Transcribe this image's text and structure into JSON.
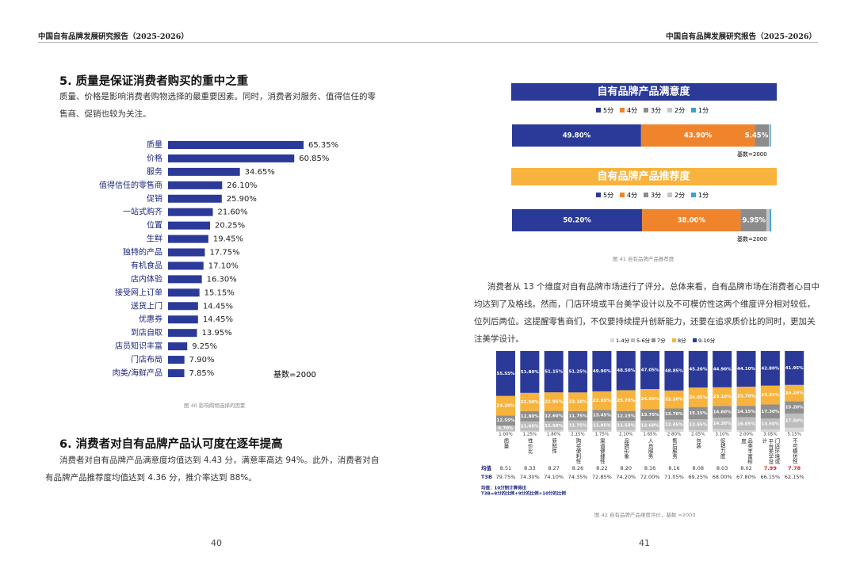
{
  "header": "中国自有品牌发展研究报告（2025-2026）",
  "left": {
    "heading": "5. 质量是保证消费者购买的重中之重",
    "intro": "质量、价格是影响消费者购物选择的最重要因素。同时，消费者对服务、值得信任的零售商、促销也较为关注。",
    "factors_chart": {
      "type": "hbar",
      "color": "#2b3a98",
      "categories": [
        "质量",
        "价格",
        "服务",
        "值得信任的零售商",
        "促销",
        "一站式购齐",
        "位置",
        "生鲜",
        "独特的产品",
        "有机食品",
        "店内体验",
        "接受网上订单",
        "送货上门",
        "优惠券",
        "到店自取",
        "店员知识丰富",
        "门店布局",
        "肉类/海鲜产品"
      ],
      "values": [
        65.35,
        60.85,
        34.65,
        26.1,
        25.9,
        21.6,
        20.25,
        19.45,
        17.75,
        17.1,
        16.3,
        15.15,
        14.45,
        14.45,
        13.95,
        9.25,
        7.9,
        7.85
      ],
      "value_labels": [
        "65.35%",
        "60.85%",
        "34.65%",
        "26.10%",
        "25.90%",
        "21.60%",
        "20.25%",
        "19.45%",
        "17.75%",
        "17.10%",
        "16.30%",
        "15.15%",
        "14.45%",
        "14.45%",
        "13.95%",
        "9.25%",
        "7.90%",
        "7.85%"
      ],
      "base_note": "基数=2000"
    },
    "caption": "图 40 影响购物选择的因素",
    "heading2": "6. 消费者对自有品牌产品认可度在逐年提高",
    "para2": "消费者对自有品牌产品满意度均值达到 4.43 分，满意率高达 94%。此外，消费者对自有品牌产品推荐度均值达到 4.36 分，推介率达到 88%。",
    "page_number": "40"
  },
  "right": {
    "satisfaction_chart": {
      "type": "stacked_hbar",
      "title": "自有品牌产品满意度",
      "title_color": "#2b3a98",
      "series": [
        {
          "name": "5分",
          "color": "#2b3a98",
          "values": [
            49.8
          ],
          "value_labels": [
            "49.80%"
          ]
        },
        {
          "name": "4分",
          "color": "#f0842c",
          "values": [
            43.9
          ],
          "value_labels": [
            "43.90%"
          ]
        },
        {
          "name": "3分",
          "color": "#8c8c8c",
          "values": [
            5.45
          ],
          "value_labels": [
            "5.45%"
          ]
        },
        {
          "name": "2分",
          "color": "#c4c4c4",
          "values": [
            0.6
          ]
        },
        {
          "name": "1分",
          "color": "#3aa0d8",
          "values": [
            0.25
          ]
        }
      ],
      "base_note": "基数=2000"
    },
    "recommend_chart": {
      "type": "stacked_hbar",
      "title": "自有品牌产品推荐度",
      "title_color": "#f7b33d",
      "series": [
        {
          "name": "5分",
          "color": "#2b3a98",
          "values": [
            50.2
          ],
          "value_labels": [
            "50.20%"
          ]
        },
        {
          "name": "4分",
          "color": "#f0842c",
          "values": [
            38.0
          ],
          "value_labels": [
            "38.00%"
          ]
        },
        {
          "name": "3分",
          "color": "#8c8c8c",
          "values": [
            9.95
          ],
          "value_labels": [
            "9.95%"
          ]
        },
        {
          "name": "2分",
          "color": "#c4c4c4",
          "values": [
            1.3
          ]
        },
        {
          "name": "1分",
          "color": "#3aa0d8",
          "values": [
            0.55
          ]
        }
      ],
      "base_note": "基数=2000"
    },
    "caption": "图 41 自有品牌产品推荐度",
    "para": "消费者从 13 个维度对自有品牌市场进行了评分。总体来看，自有品牌市场在消费者心目中均达到了及格线。然而，门店环境或平台美学设计以及不可模仿性这两个维度评分相对较低，位列后两位。这提醒零售商们，不仅要持续提升创新能力，还要在追求质价比的同时，更加关注美学设计。",
    "dimension_chart": {
      "type": "stacked_column",
      "categories": [
        "质量",
        "性价比",
        "新鲜性",
        "购买便利性",
        "渠道便捷性",
        "品牌形象",
        "人员服务",
        "售后服务",
        "包装",
        "促销力度",
        "品类丰富程度",
        "门店环境或平台美学设计",
        "不可模仿性"
      ],
      "series": [
        {
          "name": "1-4分",
          "color": "#d9d9d9",
          "values": [
            1.0,
            1.25,
            1.8,
            2.15,
            1.75,
            2.1,
            1.65,
            2.8,
            2.05,
            3.1,
            2.0,
            3.05,
            5.15
          ],
          "value_labels": [
            "1.00%",
            "1.25%",
            "1.80%",
            "2.15%",
            "1.75%",
            "2.10%",
            "1.65%",
            "2.80%",
            "2.05%",
            "3.10%",
            "2.00%",
            "3.05%",
            "5.15%"
          ]
        },
        {
          "name": "5-6分",
          "color": "#bdbdbd",
          "values": [
            6.7,
            11.65,
            11.5,
            11.75,
            11.95,
            11.55,
            12.6,
            12.45,
            13.55,
            14.3,
            16.05,
            13.5,
            17.5
          ],
          "value_labels": [
            "6.70%",
            "11.65%",
            "11.50%",
            "11.75%",
            "11.95%",
            "11.55%",
            "12.60%",
            "12.45%",
            "13.55%",
            "14.30%",
            "16.05%",
            "13.50%",
            "17.50%"
          ]
        },
        {
          "name": "7分",
          "color": "#8f8f8f",
          "values": [
            12.55,
            12.8,
            12.6,
            11.75,
            13.45,
            12.15,
            13.75,
            13.7,
            15.15,
            14.6,
            14.15,
            17.3,
            15.2
          ],
          "value_labels": [
            "12.55%",
            "12.80%",
            "12.60%",
            "11.75%",
            "13.45%",
            "12.15%",
            "13.75%",
            "13.70%",
            "15.15%",
            "14.60%",
            "14.15%",
            "17.30%",
            "15.20%"
          ]
        },
        {
          "name": "8分",
          "color": "#f7b33d",
          "values": [
            24.2,
            22.5,
            22.95,
            23.1,
            22.95,
            25.7,
            24.95,
            22.2,
            24.05,
            23.1,
            23.7,
            23.35,
            20.2
          ],
          "value_labels": [
            "24.20%",
            "22.50%",
            "22.95%",
            "23.10%",
            "22.95%",
            "25.70%",
            "24.95%",
            "22.20%",
            "24.05%",
            "23.10%",
            "23.70%",
            "23.35%",
            "20.20%"
          ]
        },
        {
          "name": "9-10分",
          "color": "#2b3a98",
          "values": [
            55.55,
            51.8,
            51.15,
            51.25,
            49.9,
            48.5,
            47.05,
            48.85,
            45.2,
            44.9,
            44.1,
            42.8,
            41.95
          ],
          "value_labels": [
            "55.55%",
            "51.80%",
            "51.15%",
            "51.25%",
            "49.90%",
            "48.50%",
            "47.05%",
            "48.85%",
            "45.20%",
            "44.90%",
            "44.10%",
            "42.80%",
            "41.95%"
          ]
        }
      ],
      "table": [
        {
          "label": "均值",
          "cells": [
            "8.51",
            "8.33",
            "8.27",
            "8.26",
            "8.22",
            "8.20",
            "8.16",
            "8.16",
            "8.08",
            "8.03",
            "8.02",
            "7.99",
            "7.78"
          ],
          "highlight": [
            11,
            12
          ],
          "highlight_color": "#e02020"
        },
        {
          "label": "T3B",
          "cells": [
            "79.75%",
            "74.30%",
            "74.10%",
            "74.35%",
            "72.85%",
            "74.20%",
            "72.00%",
            "71.05%",
            "69.25%",
            "68.00%",
            "67.80%",
            "66.15%",
            "62.15%"
          ]
        }
      ],
      "notes": [
        "均值：10分制计算得出",
        "T3B=8分的比例+9分的比例+10分的比例"
      ]
    },
    "caption2": "图 42 自有品牌产品维度评价，基数 =2000",
    "page_number": "41"
  }
}
